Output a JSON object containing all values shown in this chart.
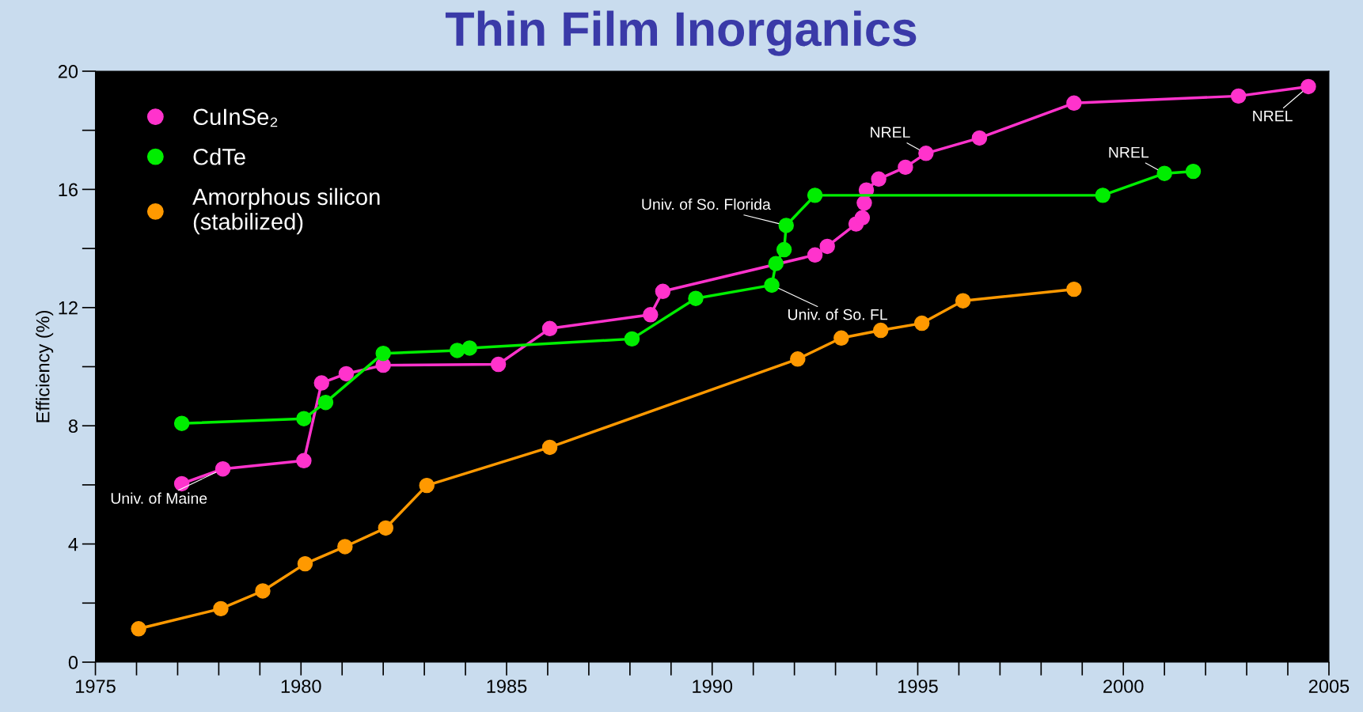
{
  "chart_data": {
    "type": "line",
    "title": "Thin Film Inorganics",
    "ylabel": "Efficiency (%)",
    "xlim": [
      1975,
      2005
    ],
    "ylim": [
      0,
      20
    ],
    "xticks": [
      1975,
      1980,
      1985,
      1990,
      1995,
      2000,
      2005
    ],
    "yticks": [
      0,
      4,
      8,
      12,
      16,
      20
    ],
    "marker": "circle",
    "grid": false,
    "legend": "top left",
    "series": [
      {
        "name": "CuInSe₂",
        "color": "#ff33cc",
        "x": [
          1977.1,
          1978.1,
          1980.07,
          1980.5,
          1981.1,
          1982.0,
          1984.8,
          1986.05,
          1988.5,
          1988.8,
          1992.5,
          1992.8,
          1993.5,
          1993.65,
          1993.7,
          1993.75,
          1994.05,
          1994.7,
          1995.2,
          1996.5,
          1998.8,
          2002.8,
          2004.5
        ],
        "values": [
          6.04,
          6.54,
          6.82,
          9.45,
          9.76,
          10.05,
          10.08,
          11.29,
          11.76,
          12.55,
          13.78,
          14.07,
          14.83,
          15.04,
          15.54,
          15.98,
          16.35,
          16.75,
          17.22,
          17.74,
          18.92,
          19.16,
          19.48
        ]
      },
      {
        "name": "CdTe",
        "color": "#00ee00",
        "x": [
          1977.1,
          1980.07,
          1980.6,
          1982.0,
          1983.8,
          1984.1,
          1988.05,
          1989.6,
          1991.45,
          1991.55,
          1991.75,
          1991.8,
          1992.5,
          1999.5,
          2001.0,
          2001.7
        ],
        "values": [
          8.08,
          8.24,
          8.79,
          10.45,
          10.55,
          10.63,
          10.94,
          12.31,
          12.76,
          13.49,
          13.96,
          14.78,
          15.8,
          15.8,
          16.54,
          16.61
        ]
      },
      {
        "name": "Amorphous silicon\n(stabilized)",
        "color": "#ff9900",
        "x": [
          1976.05,
          1978.05,
          1979.07,
          1980.1,
          1981.07,
          1982.06,
          1983.06,
          1986.05,
          1992.08,
          1993.14,
          1994.1,
          1995.1,
          1996.1,
          1998.8
        ],
        "values": [
          1.13,
          1.81,
          2.41,
          3.33,
          3.91,
          4.54,
          5.98,
          7.27,
          10.26,
          10.97,
          11.23,
          11.47,
          12.23,
          12.62
        ]
      }
    ],
    "annotations": [
      {
        "text": "Univ. of Maine",
        "x": 1978.1,
        "y": 6.54
      },
      {
        "text": "Univ. of So. Florida",
        "x": 1991.8,
        "y": 14.78
      },
      {
        "text": "Univ. of So. FL",
        "x": 1991.45,
        "y": 12.76
      },
      {
        "text": "NREL",
        "x": 2004.5,
        "y": 19.48
      },
      {
        "text": "NREL",
        "x": 1995.2,
        "y": 17.22
      },
      {
        "text": "NREL",
        "x": 2001.0,
        "y": 16.54
      }
    ]
  }
}
